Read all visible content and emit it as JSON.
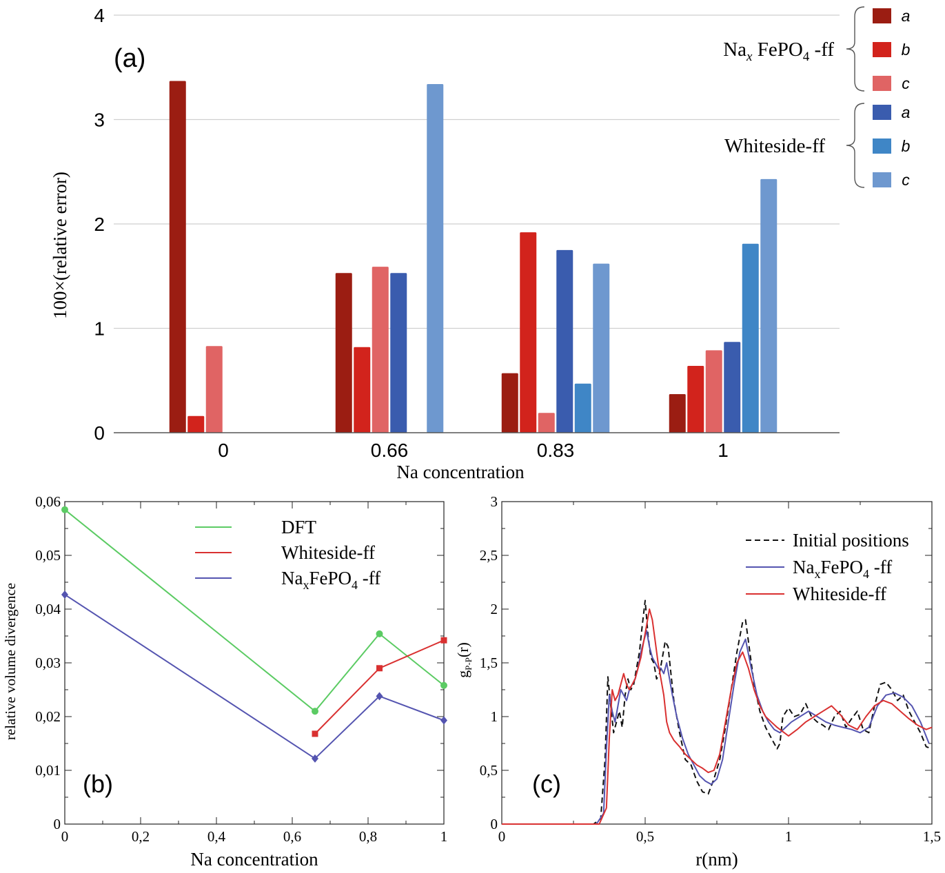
{
  "chart_data": [
    {
      "panel": "(a)",
      "type": "bar",
      "title": "",
      "xlabel": "Na concentration",
      "ylabel": "100×(relative error)",
      "ylim": [
        0,
        4
      ],
      "yticks": [
        "0",
        "1",
        "2",
        "3",
        "4"
      ],
      "categories": [
        "0",
        "0.66",
        "0.83",
        "1"
      ],
      "legend": {
        "placement": "top-right",
        "groups": [
          {
            "label": "NaₓFePO₄ -ff",
            "prefix": "Na",
            "sub": "x",
            "mid": " FePO",
            "sub2": "4",
            "suffix": " -ff",
            "items": [
              {
                "label": "a",
                "color": "#9B1D12"
              },
              {
                "label": "b",
                "color": "#D2231C"
              },
              {
                "label": "c",
                "color": "#E06464"
              }
            ]
          },
          {
            "label": "Whiteside-ff",
            "items": [
              {
                "label": "a",
                "color": "#3A5CAE"
              },
              {
                "label": "b",
                "color": "#3F86C6"
              },
              {
                "label": "c",
                "color": "#6E98CF"
              }
            ]
          }
        ]
      },
      "series": [
        {
          "name": "NaxFePO4-ff a",
          "color": "#9B1D12",
          "values": [
            3.37,
            1.53,
            0.57,
            0.37
          ]
        },
        {
          "name": "NaxFePO4-ff b",
          "color": "#D2231C",
          "values": [
            0.16,
            0.82,
            1.92,
            0.64
          ]
        },
        {
          "name": "NaxFePO4-ff c",
          "color": "#E06464",
          "values": [
            0.83,
            1.59,
            0.19,
            0.79
          ]
        },
        {
          "name": "Whiteside-ff a",
          "color": "#3A5CAE",
          "values": [
            null,
            1.53,
            1.75,
            0.87
          ]
        },
        {
          "name": "Whiteside-ff b",
          "color": "#3F86C6",
          "values": [
            null,
            null,
            0.47,
            1.81
          ]
        },
        {
          "name": "Whiteside-ff c",
          "color": "#6E98CF",
          "values": [
            null,
            3.34,
            1.62,
            2.43
          ]
        }
      ]
    },
    {
      "panel": "(b)",
      "type": "line",
      "xlabel": "Na concentration",
      "ylabel": "relative volume divergence",
      "xlim": [
        0,
        1
      ],
      "ylim": [
        0,
        0.06
      ],
      "xticks": [
        "0",
        "0,2",
        "0,4",
        "0,6",
        "0,8",
        "1"
      ],
      "yticks": [
        "0",
        "0,01",
        "0,02",
        "0,03",
        "0,04",
        "0,05",
        "0,06"
      ],
      "legend_placement": "top-center",
      "series": [
        {
          "name": "DFT",
          "label": "DFT",
          "color": "#5BCB63",
          "marker": "circle",
          "x": [
            0,
            0.66,
            0.83,
            1
          ],
          "y": [
            0.0585,
            0.021,
            0.0354,
            0.0258
          ]
        },
        {
          "name": "Whiteside-ff",
          "label": "Whiteside-ff",
          "color": "#D93030",
          "marker": "square",
          "x": [
            0.66,
            0.83,
            1
          ],
          "y": [
            0.0168,
            0.029,
            0.0342
          ]
        },
        {
          "name": "NaxFePO4-ff",
          "label": "NaₓFePO₄ -ff",
          "prefix": "Na",
          "sub": "x",
          "mid": "FePO",
          "sub2": "4",
          "suffix": " -ff",
          "color": "#5454B0",
          "marker": "diamond",
          "x": [
            0,
            0.66,
            0.83,
            1
          ],
          "y": [
            0.0427,
            0.0122,
            0.0238,
            0.0193
          ]
        }
      ]
    },
    {
      "panel": "(c)",
      "type": "line",
      "xlabel": "r(nm)",
      "ylabel": "gP-P(r)",
      "ylabel_main": "g",
      "ylabel_sub": "P-P",
      "ylabel_suffix": "(r)",
      "xlim": [
        0,
        1.5
      ],
      "ylim": [
        0,
        3
      ],
      "xticks": [
        "0",
        "0,5",
        "1",
        "1,5"
      ],
      "yticks": [
        "0",
        "0,5",
        "1",
        "1,5",
        "2",
        "2,5",
        "3"
      ],
      "legend_placement": "top-right",
      "series": [
        {
          "name": "Initial positions",
          "label": "Initial positions",
          "color": "#111111",
          "dash": "8,5",
          "x": [
            0,
            0.32,
            0.345,
            0.36,
            0.37,
            0.38,
            0.39,
            0.4,
            0.41,
            0.42,
            0.43,
            0.44,
            0.45,
            0.46,
            0.47,
            0.48,
            0.49,
            0.5,
            0.51,
            0.52,
            0.53,
            0.54,
            0.55,
            0.56,
            0.57,
            0.58,
            0.59,
            0.6,
            0.62,
            0.64,
            0.66,
            0.68,
            0.7,
            0.72,
            0.74,
            0.76,
            0.78,
            0.8,
            0.82,
            0.84,
            0.85,
            0.86,
            0.88,
            0.9,
            0.92,
            0.94,
            0.96,
            0.97,
            0.98,
            1.0,
            1.02,
            1.04,
            1.06,
            1.08,
            1.1,
            1.12,
            1.14,
            1.16,
            1.18,
            1.2,
            1.22,
            1.24,
            1.26,
            1.28,
            1.3,
            1.32,
            1.34,
            1.36,
            1.38,
            1.4,
            1.42,
            1.44,
            1.46,
            1.48,
            1.5
          ],
          "y": [
            0,
            0,
            0.05,
            0.6,
            1.37,
            1.1,
            0.85,
            0.95,
            1.05,
            0.9,
            1.2,
            1.35,
            1.25,
            1.3,
            1.45,
            1.6,
            1.85,
            2.08,
            1.75,
            1.55,
            1.5,
            1.35,
            1.4,
            1.55,
            1.7,
            1.65,
            1.4,
            1.15,
            0.85,
            0.6,
            0.55,
            0.4,
            0.3,
            0.28,
            0.42,
            0.6,
            0.9,
            1.25,
            1.6,
            1.88,
            1.9,
            1.7,
            1.3,
            1.05,
            0.9,
            0.8,
            0.7,
            0.75,
            1.0,
            1.08,
            1.0,
            1.02,
            1.12,
            1.0,
            0.95,
            0.92,
            0.88,
            1.0,
            1.05,
            0.9,
            0.98,
            1.05,
            0.88,
            0.85,
            1.1,
            1.3,
            1.32,
            1.25,
            1.15,
            1.2,
            1.05,
            0.95,
            0.85,
            0.72,
            0.7
          ]
        },
        {
          "name": "NaxFePO4-ff",
          "label": "NaₓFePO₄ -ff",
          "prefix": "Na",
          "sub": "x",
          "mid": "FePO",
          "sub2": "4",
          "suffix": " -ff",
          "color": "#5454B0",
          "dash": "",
          "x": [
            0,
            0.33,
            0.355,
            0.365,
            0.375,
            0.385,
            0.395,
            0.405,
            0.415,
            0.425,
            0.435,
            0.445,
            0.455,
            0.465,
            0.475,
            0.485,
            0.495,
            0.505,
            0.515,
            0.525,
            0.535,
            0.545,
            0.555,
            0.565,
            0.575,
            0.585,
            0.595,
            0.61,
            0.63,
            0.65,
            0.67,
            0.69,
            0.71,
            0.73,
            0.75,
            0.77,
            0.79,
            0.81,
            0.83,
            0.85,
            0.87,
            0.89,
            0.91,
            0.93,
            0.95,
            0.97,
            0.99,
            1.01,
            1.04,
            1.07,
            1.1,
            1.13,
            1.16,
            1.19,
            1.22,
            1.25,
            1.28,
            1.31,
            1.34,
            1.37,
            1.4,
            1.43,
            1.46,
            1.49
          ],
          "y": [
            0,
            0,
            0.1,
            0.7,
            1.2,
            1.05,
            0.95,
            1.1,
            1.25,
            1.2,
            1.15,
            1.25,
            1.3,
            1.35,
            1.45,
            1.6,
            1.7,
            1.8,
            1.65,
            1.55,
            1.5,
            1.45,
            1.45,
            1.4,
            1.5,
            1.35,
            1.2,
            1.0,
            0.8,
            0.65,
            0.55,
            0.45,
            0.4,
            0.37,
            0.42,
            0.6,
            0.95,
            1.3,
            1.6,
            1.72,
            1.45,
            1.2,
            1.05,
            0.95,
            0.88,
            0.85,
            0.9,
            0.95,
            1.0,
            1.05,
            1.0,
            0.95,
            0.92,
            0.9,
            0.88,
            0.85,
            0.9,
            1.1,
            1.2,
            1.22,
            1.18,
            1.1,
            0.95,
            0.75
          ]
        },
        {
          "name": "Whiteside-ff",
          "label": "Whiteside-ff",
          "color": "#D93030",
          "dash": "",
          "x": [
            0,
            0.34,
            0.365,
            0.375,
            0.385,
            0.395,
            0.405,
            0.415,
            0.425,
            0.435,
            0.445,
            0.455,
            0.465,
            0.475,
            0.485,
            0.495,
            0.505,
            0.515,
            0.525,
            0.535,
            0.545,
            0.555,
            0.565,
            0.575,
            0.585,
            0.6,
            0.62,
            0.64,
            0.66,
            0.68,
            0.7,
            0.72,
            0.74,
            0.76,
            0.78,
            0.8,
            0.82,
            0.84,
            0.86,
            0.88,
            0.9,
            0.92,
            0.94,
            0.96,
            0.98,
            1.0,
            1.03,
            1.06,
            1.09,
            1.12,
            1.15,
            1.18,
            1.21,
            1.24,
            1.27,
            1.3,
            1.33,
            1.36,
            1.39,
            1.42,
            1.45,
            1.48,
            1.5
          ],
          "y": [
            0,
            0,
            0.15,
            0.8,
            1.25,
            1.15,
            1.2,
            1.3,
            1.4,
            1.3,
            1.25,
            1.3,
            1.35,
            1.45,
            1.55,
            1.7,
            1.85,
            2.0,
            1.9,
            1.7,
            1.5,
            1.35,
            1.2,
            0.95,
            0.85,
            0.78,
            0.72,
            0.65,
            0.6,
            0.55,
            0.52,
            0.48,
            0.5,
            0.65,
            0.95,
            1.25,
            1.5,
            1.6,
            1.45,
            1.25,
            1.1,
            1.0,
            0.95,
            0.9,
            0.86,
            0.82,
            0.88,
            0.95,
            1.0,
            1.05,
            1.1,
            1.02,
            0.92,
            0.88,
            1.0,
            1.1,
            1.15,
            1.12,
            1.05,
            0.98,
            0.92,
            0.88,
            0.9
          ]
        }
      ]
    }
  ]
}
